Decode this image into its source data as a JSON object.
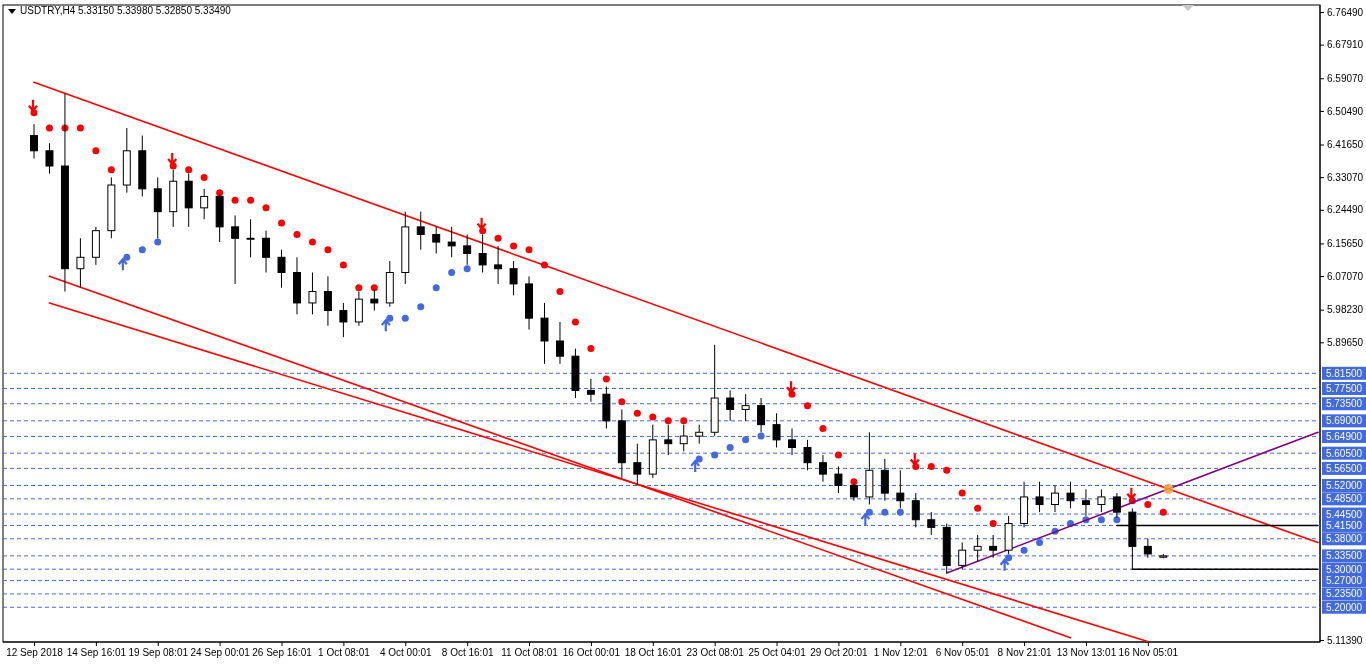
{
  "chart_data": {
    "type": "candlestick",
    "title": "USDTRY,H4  5.33150 5.33980 5.32850 5.33490",
    "categories": [
      "12 Sep 2018",
      null,
      null,
      null,
      "14 Sep 16:01",
      null,
      null,
      null,
      "19 Sep 08:01",
      null,
      null,
      null,
      "24 Sep 00:01",
      null,
      null,
      null,
      "26 Sep 16:01",
      null,
      null,
      null,
      "1 Oct 08:01",
      null,
      null,
      null,
      "4 Oct 00:01",
      null,
      null,
      null,
      "8 Oct 16:01",
      null,
      null,
      null,
      "11 Oct 08:01",
      null,
      null,
      null,
      "16 Oct 00:01",
      null,
      null,
      null,
      "18 Oct 16:01",
      null,
      null,
      null,
      "23 Oct 08:01",
      null,
      null,
      null,
      "25 Oct 04:01",
      null,
      null,
      null,
      "29 Oct 20:01",
      null,
      null,
      null,
      "1 Nov 12:01",
      null,
      null,
      null,
      "6 Nov 05:01",
      null,
      null,
      null,
      "8 Nov 21:01",
      null,
      null,
      null,
      "13 Nov 13:01",
      null,
      null,
      null,
      "16 Nov 05:01",
      null,
      null,
      null,
      null,
      null,
      null,
      null,
      null,
      null,
      null,
      null
    ],
    "ohlc": [
      [
        6.44,
        6.47,
        6.38,
        6.4
      ],
      [
        6.4,
        6.42,
        6.34,
        6.36
      ],
      [
        6.36,
        6.55,
        6.03,
        6.09
      ],
      [
        6.09,
        6.17,
        6.04,
        6.12
      ],
      [
        6.12,
        6.2,
        6.1,
        6.19
      ],
      [
        6.19,
        6.33,
        6.17,
        6.31
      ],
      [
        6.31,
        6.46,
        6.29,
        6.4
      ],
      [
        6.4,
        6.44,
        6.28,
        6.3
      ],
      [
        6.3,
        6.33,
        6.17,
        6.24
      ],
      [
        6.24,
        6.35,
        6.2,
        6.32
      ],
      [
        6.32,
        6.34,
        6.2,
        6.25
      ],
      [
        6.25,
        6.3,
        6.22,
        6.28
      ],
      [
        6.28,
        6.285,
        6.16,
        6.2
      ],
      [
        6.2,
        6.23,
        6.05,
        6.17
      ],
      [
        6.17,
        6.22,
        6.12,
        6.17
      ],
      [
        6.17,
        6.19,
        6.08,
        6.12
      ],
      [
        6.12,
        6.14,
        6.04,
        6.08
      ],
      [
        6.08,
        6.12,
        5.97,
        6.0
      ],
      [
        6.0,
        6.08,
        5.97,
        6.03
      ],
      [
        6.03,
        6.07,
        5.94,
        5.98
      ],
      [
        5.98,
        6.0,
        5.91,
        5.95
      ],
      [
        5.95,
        6.03,
        5.94,
        6.01
      ],
      [
        6.01,
        6.035,
        5.98,
        6.0
      ],
      [
        6.0,
        6.11,
        5.99,
        6.08
      ],
      [
        6.08,
        6.24,
        6.05,
        6.2
      ],
      [
        6.2,
        6.24,
        6.14,
        6.18
      ],
      [
        6.18,
        6.2,
        6.13,
        6.16
      ],
      [
        6.16,
        6.2,
        6.12,
        6.15
      ],
      [
        6.15,
        6.18,
        6.1,
        6.13
      ],
      [
        6.13,
        6.18,
        6.08,
        6.1
      ],
      [
        6.1,
        6.15,
        6.05,
        6.09
      ],
      [
        6.09,
        6.11,
        6.02,
        6.05
      ],
      [
        6.05,
        6.07,
        5.93,
        5.96
      ],
      [
        5.96,
        6.0,
        5.84,
        5.9
      ],
      [
        5.9,
        5.95,
        5.84,
        5.86
      ],
      [
        5.86,
        5.88,
        5.75,
        5.77
      ],
      [
        5.77,
        5.8,
        5.74,
        5.76
      ],
      [
        5.76,
        5.78,
        5.67,
        5.69
      ],
      [
        5.69,
        5.72,
        5.54,
        5.58
      ],
      [
        5.58,
        5.63,
        5.52,
        5.55
      ],
      [
        5.55,
        5.68,
        5.54,
        5.64
      ],
      [
        5.64,
        5.68,
        5.6,
        5.63
      ],
      [
        5.63,
        5.68,
        5.61,
        5.65
      ],
      [
        5.65,
        5.68,
        5.63,
        5.66
      ],
      [
        5.66,
        5.89,
        5.65,
        5.75
      ],
      [
        5.75,
        5.77,
        5.69,
        5.72
      ],
      [
        5.72,
        5.76,
        5.69,
        5.73
      ],
      [
        5.73,
        5.75,
        5.66,
        5.68
      ],
      [
        5.68,
        5.71,
        5.62,
        5.64
      ],
      [
        5.64,
        5.67,
        5.6,
        5.62
      ],
      [
        5.62,
        5.64,
        5.56,
        5.58
      ],
      [
        5.58,
        5.6,
        5.53,
        5.55
      ],
      [
        5.55,
        5.57,
        5.5,
        5.52
      ],
      [
        5.52,
        5.525,
        5.48,
        5.49
      ],
      [
        5.49,
        5.66,
        5.47,
        5.56
      ],
      [
        5.56,
        5.59,
        5.48,
        5.5
      ],
      [
        5.5,
        5.56,
        5.46,
        5.48
      ],
      [
        5.48,
        5.5,
        5.41,
        5.43
      ],
      [
        5.43,
        5.45,
        5.39,
        5.41
      ],
      [
        5.41,
        5.42,
        5.29,
        5.31
      ],
      [
        5.31,
        5.37,
        5.3,
        5.35
      ],
      [
        5.35,
        5.39,
        5.32,
        5.36
      ],
      [
        5.36,
        5.39,
        5.33,
        5.35
      ],
      [
        5.35,
        5.44,
        5.34,
        5.42
      ],
      [
        5.42,
        5.53,
        5.41,
        5.49
      ],
      [
        5.49,
        5.53,
        5.45,
        5.47
      ],
      [
        5.47,
        5.52,
        5.45,
        5.5
      ],
      [
        5.5,
        5.53,
        5.46,
        5.48
      ],
      [
        5.48,
        5.51,
        5.44,
        5.47
      ],
      [
        5.47,
        5.51,
        5.45,
        5.49
      ],
      [
        5.49,
        5.5,
        5.435,
        5.45
      ],
      [
        5.45,
        5.46,
        5.3,
        5.36
      ],
      [
        5.36,
        5.38,
        5.33,
        5.34
      ],
      [
        5.3315,
        5.3398,
        5.3285,
        5.3349
      ],
      null,
      null,
      null,
      null,
      null,
      null,
      null,
      null,
      null,
      null
    ],
    "series": [
      {
        "type": "scatter",
        "color": "#ff0000",
        "marker": "circle",
        "values": [
          6.5,
          6.46,
          6.46,
          6.46,
          6.4,
          6.35,
          null,
          null,
          null,
          6.36,
          6.35,
          6.33,
          6.29,
          6.27,
          6.27,
          6.25,
          6.21,
          6.18,
          6.16,
          6.14,
          6.1,
          6.04,
          6.04,
          null,
          null,
          null,
          null,
          null,
          null,
          6.19,
          6.17,
          6.15,
          6.14,
          6.1,
          6.03,
          5.95,
          5.88,
          5.8,
          5.74,
          5.71,
          5.7,
          5.69,
          5.69,
          null,
          null,
          null,
          null,
          null,
          null,
          5.76,
          5.73,
          5.67,
          5.6,
          5.53,
          null,
          null,
          null,
          5.57,
          5.57,
          5.56,
          5.5,
          5.46,
          5.42,
          null,
          null,
          null,
          null,
          null,
          null,
          null,
          null,
          5.48,
          5.47,
          5.45,
          null,
          null,
          null,
          null,
          null,
          null,
          null,
          null,
          null,
          null
        ]
      },
      {
        "type": "scatter",
        "color": "#4169e1",
        "marker": "circle",
        "values": [
          null,
          null,
          null,
          null,
          null,
          null,
          6.12,
          6.14,
          6.16,
          null,
          null,
          null,
          null,
          null,
          null,
          null,
          null,
          null,
          null,
          null,
          null,
          null,
          null,
          5.96,
          5.96,
          5.99,
          6.04,
          6.08,
          6.09,
          null,
          null,
          null,
          null,
          null,
          null,
          null,
          null,
          null,
          null,
          null,
          null,
          null,
          null,
          5.59,
          5.6,
          5.62,
          5.64,
          5.65,
          null,
          null,
          null,
          null,
          null,
          null,
          5.45,
          5.45,
          5.45,
          null,
          null,
          null,
          null,
          null,
          null,
          5.33,
          5.35,
          5.37,
          5.4,
          5.42,
          5.43,
          5.43,
          5.43,
          null,
          null,
          null,
          null,
          null,
          null,
          null,
          null,
          null,
          null,
          null,
          null,
          null
        ]
      },
      {
        "type": "line",
        "color": "#ff0000",
        "values": [
          6.58,
          null,
          null,
          null,
          null,
          null,
          null,
          null,
          null,
          null,
          null,
          null,
          null,
          null,
          null,
          null,
          null,
          null,
          null,
          null,
          null,
          null,
          null,
          null,
          null,
          null,
          null,
          null,
          null,
          null,
          null,
          null,
          null,
          null,
          null,
          null,
          null,
          null,
          null,
          null,
          null,
          null,
          null,
          null,
          null,
          null,
          null,
          null,
          null,
          null,
          null,
          null,
          null,
          null,
          null,
          null,
          null,
          null,
          null,
          null,
          null,
          null,
          null,
          null,
          null,
          null,
          null,
          null,
          null,
          null,
          null,
          null,
          null,
          null,
          null,
          null,
          null,
          null,
          null,
          null,
          null,
          null,
          null,
          5.37
        ]
      },
      {
        "type": "line",
        "color": "#ff0000",
        "values": [
          null,
          6.07,
          null,
          null,
          null,
          null,
          null,
          null,
          null,
          null,
          null,
          null,
          null,
          null,
          null,
          null,
          null,
          null,
          null,
          null,
          null,
          null,
          null,
          null,
          null,
          null,
          null,
          null,
          null,
          null,
          null,
          null,
          null,
          null,
          null,
          null,
          null,
          null,
          null,
          null,
          null,
          null,
          null,
          null,
          null,
          null,
          null,
          null,
          null,
          null,
          null,
          null,
          null,
          null,
          null,
          null,
          null,
          null,
          null,
          null,
          null,
          null,
          null,
          null,
          null,
          null,
          null,
          5.12,
          null,
          null,
          null,
          null,
          null,
          null,
          null,
          null,
          null,
          null,
          null,
          null,
          null,
          null,
          null,
          null
        ]
      },
      {
        "type": "line",
        "color": "#ff0000",
        "values": [
          null,
          6.0,
          null,
          null,
          null,
          null,
          null,
          null,
          null,
          null,
          null,
          null,
          null,
          null,
          null,
          null,
          null,
          null,
          null,
          null,
          null,
          null,
          null,
          null,
          null,
          null,
          null,
          null,
          null,
          null,
          null,
          null,
          null,
          null,
          null,
          null,
          null,
          null,
          null,
          null,
          null,
          null,
          null,
          null,
          null,
          null,
          null,
          null,
          null,
          null,
          null,
          null,
          null,
          null,
          null,
          null,
          null,
          null,
          null,
          null,
          null,
          null,
          null,
          null,
          null,
          null,
          null,
          null,
          null,
          null,
          null,
          null,
          5.11,
          null,
          null,
          null,
          null,
          null,
          null,
          null,
          null,
          null,
          null,
          null
        ]
      },
      {
        "type": "line",
        "color": "#800080",
        "values": [
          null,
          null,
          null,
          null,
          null,
          null,
          null,
          null,
          null,
          null,
          null,
          null,
          null,
          null,
          null,
          null,
          null,
          null,
          null,
          null,
          null,
          null,
          null,
          null,
          null,
          null,
          null,
          null,
          null,
          null,
          null,
          null,
          null,
          null,
          null,
          null,
          null,
          null,
          null,
          null,
          null,
          null,
          null,
          null,
          null,
          null,
          null,
          null,
          null,
          null,
          null,
          null,
          null,
          null,
          null,
          null,
          null,
          null,
          null,
          5.29,
          null,
          null,
          null,
          null,
          null,
          null,
          null,
          null,
          null,
          null,
          null,
          null,
          null,
          null,
          null,
          null,
          null,
          null,
          null,
          null,
          null,
          null,
          null,
          5.66
        ]
      },
      {
        "type": "line",
        "color": "#000000",
        "values": [
          null,
          null,
          null,
          null,
          null,
          null,
          null,
          null,
          null,
          null,
          null,
          null,
          null,
          null,
          null,
          null,
          null,
          null,
          null,
          null,
          null,
          null,
          null,
          null,
          null,
          null,
          null,
          null,
          null,
          null,
          null,
          null,
          null,
          null,
          null,
          null,
          null,
          null,
          null,
          null,
          null,
          null,
          null,
          null,
          null,
          null,
          null,
          null,
          null,
          null,
          null,
          null,
          null,
          null,
          null,
          null,
          null,
          null,
          null,
          null,
          null,
          null,
          null,
          null,
          null,
          null,
          null,
          null,
          null,
          null,
          5.415,
          null,
          null,
          null,
          null,
          null,
          null,
          null,
          null,
          null,
          null,
          null,
          null,
          5.415
        ]
      },
      {
        "type": "line",
        "color": "#000000",
        "values": [
          null,
          null,
          null,
          null,
          null,
          null,
          null,
          null,
          null,
          null,
          null,
          null,
          null,
          null,
          null,
          null,
          null,
          null,
          null,
          null,
          null,
          null,
          null,
          null,
          null,
          null,
          null,
          null,
          null,
          null,
          null,
          null,
          null,
          null,
          null,
          null,
          null,
          null,
          null,
          null,
          null,
          null,
          null,
          null,
          null,
          null,
          null,
          null,
          null,
          null,
          null,
          null,
          null,
          null,
          null,
          null,
          null,
          null,
          null,
          null,
          null,
          null,
          null,
          null,
          null,
          null,
          null,
          null,
          null,
          null,
          null,
          5.3,
          null,
          null,
          null,
          null,
          null,
          null,
          null,
          null,
          null,
          null,
          null,
          5.3
        ]
      }
    ],
    "ylim": [
      5.1086,
      6.7833
    ],
    "yticks": [
      {
        "value": 6.7649,
        "label": "6.76490"
      },
      {
        "value": 6.6791,
        "label": "6.67910"
      },
      {
        "value": 6.5907,
        "label": "6.59070"
      },
      {
        "value": 6.5049,
        "label": "6.50490"
      },
      {
        "value": 6.4165,
        "label": "6.41650"
      },
      {
        "value": 6.3307,
        "label": "6.33070"
      },
      {
        "value": 6.2449,
        "label": "6.24490"
      },
      {
        "value": 6.1565,
        "label": "6.15650"
      },
      {
        "value": 6.0707,
        "label": "6.07070"
      },
      {
        "value": 5.9823,
        "label": "5.98230"
      },
      {
        "value": 5.8965,
        "label": "5.89650"
      },
      {
        "value": 5.1139,
        "label": "5.11390"
      }
    ],
    "ref_lines": [
      {
        "axis": "y",
        "value": 5.815,
        "label": "5.81500",
        "color": "#4169e1",
        "line_style": "dashed"
      },
      {
        "axis": "y",
        "value": 5.775,
        "label": "5.77500",
        "color": "#4169e1",
        "line_style": "dashed"
      },
      {
        "axis": "y",
        "value": 5.735,
        "label": "5.73500",
        "color": "#4169e1",
        "line_style": "dashed"
      },
      {
        "axis": "y",
        "value": 5.69,
        "label": "5.69000",
        "color": "#4169e1",
        "line_style": "dashed"
      },
      {
        "axis": "y",
        "value": 5.649,
        "label": "5.64900",
        "color": "#4169e1",
        "line_style": "dashed"
      },
      {
        "axis": "y",
        "value": 5.605,
        "label": "5.60500",
        "color": "#4169e1",
        "line_style": "dashed"
      },
      {
        "axis": "y",
        "value": 5.565,
        "label": "5.56500",
        "color": "#4169e1",
        "line_style": "dashed"
      },
      {
        "axis": "y",
        "value": 5.52,
        "label": "5.52000",
        "color": "#4169e1",
        "line_style": "dashed"
      },
      {
        "axis": "y",
        "value": 5.485,
        "label": "5.48500",
        "color": "#4169e1",
        "line_style": "dashed"
      },
      {
        "axis": "y",
        "value": 5.445,
        "label": "5.44500",
        "color": "#4169e1",
        "line_style": "dashed"
      },
      {
        "axis": "y",
        "value": 5.415,
        "label": "5.41500",
        "color": "#4169e1",
        "line_style": "dashed"
      },
      {
        "axis": "y",
        "value": 5.38,
        "label": "5.38000",
        "color": "#4169e1",
        "line_style": "dashed"
      },
      {
        "axis": "y",
        "value": 5.335,
        "label": "5.33500",
        "color": "#4169e1",
        "line_style": "dashed"
      },
      {
        "axis": "y",
        "value": 5.3,
        "label": "5.30000",
        "color": "#4169e1",
        "line_style": "dashed"
      },
      {
        "axis": "y",
        "value": 5.27,
        "label": "5.27000",
        "color": "#4169e1",
        "line_style": "dashed"
      },
      {
        "axis": "y",
        "value": 5.235,
        "label": "5.23500",
        "color": "#4169e1",
        "line_style": "dashed"
      },
      {
        "axis": "y",
        "value": 5.2,
        "label": "5.20000",
        "color": "#4169e1",
        "line_style": "dashed"
      }
    ]
  }
}
